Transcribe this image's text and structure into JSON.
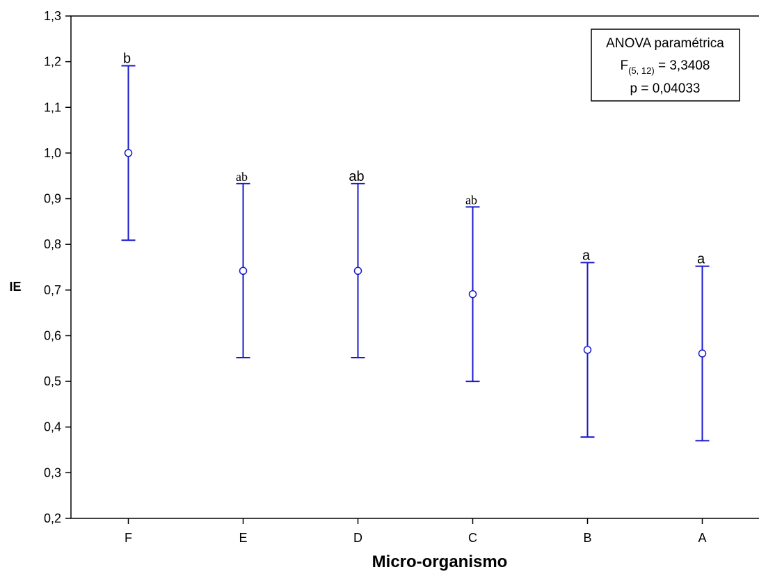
{
  "chart_data": {
    "type": "scatter",
    "subtype": "means with error bars",
    "xlabel": "Micro-organismo",
    "ylabel": "IE",
    "categories": [
      "F",
      "E",
      "D",
      "C",
      "B",
      "A"
    ],
    "means": [
      1.0,
      0.742,
      0.742,
      0.691,
      0.569,
      0.561
    ],
    "upper": [
      1.191,
      0.933,
      0.933,
      0.882,
      0.76,
      0.752
    ],
    "lower": [
      0.809,
      0.552,
      0.552,
      0.5,
      0.378,
      0.37
    ],
    "group_letters": [
      "b",
      "ab",
      "ab",
      "ab",
      "a",
      "a"
    ],
    "ylim": [
      0.2,
      1.3
    ],
    "yticks": [
      "0,2",
      "0,3",
      "0,4",
      "0,5",
      "0,6",
      "0,7",
      "0,8",
      "0,9",
      "1,0",
      "1,1",
      "1,2",
      "1,3"
    ],
    "grid": false,
    "series_color": "#1a1acc",
    "annotation": {
      "line1": "ANOVA paramétrica",
      "stat_prefix": "F",
      "stat_subscript": "(5, 12)",
      "stat_value": " = 3,3408",
      "line3": "p = 0,04033"
    }
  }
}
